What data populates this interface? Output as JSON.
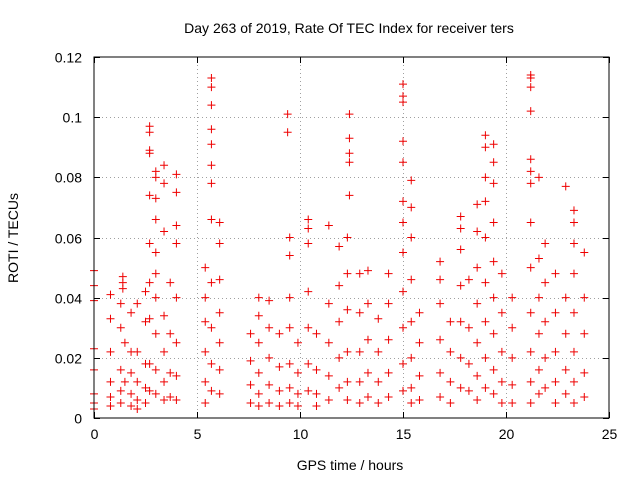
{
  "chart_data": {
    "type": "scatter",
    "title": "Day 263 of 2019, Rate Of TEC Index for receiver ters",
    "xlabel": "GPS time / hours",
    "ylabel": "ROTI / TECUs",
    "xlim": [
      0,
      25
    ],
    "ylim": [
      0,
      0.12
    ],
    "xticks": [
      0,
      5,
      10,
      15,
      20,
      25
    ],
    "xtick_labels": [
      "0",
      "5",
      "10",
      "15",
      "20",
      "25"
    ],
    "yticks": [
      0,
      0.02,
      0.04,
      0.06,
      0.08,
      0.1,
      0.12
    ],
    "ytick_labels": [
      "0",
      "0.02",
      "0.04",
      "0.06",
      "0.08",
      "0.1",
      "0.12"
    ],
    "grid": true,
    "marker": "plus",
    "marker_color": "#ee0000",
    "series": [
      {
        "name": "ROTI",
        "points": [
          [
            0.0,
            0.049
          ],
          [
            0.0,
            0.044
          ],
          [
            0.0,
            0.039
          ],
          [
            0.0,
            0.023
          ],
          [
            0.0,
            0.016
          ],
          [
            0.0,
            0.008
          ],
          [
            0.0,
            0.005
          ],
          [
            0.0,
            0.003
          ],
          [
            0.8,
            0.041
          ],
          [
            0.8,
            0.033
          ],
          [
            0.8,
            0.022
          ],
          [
            0.8,
            0.012
          ],
          [
            0.8,
            0.007
          ],
          [
            0.8,
            0.004
          ],
          [
            1.3,
            0.038
          ],
          [
            1.3,
            0.03
          ],
          [
            1.3,
            0.016
          ],
          [
            1.3,
            0.009
          ],
          [
            1.3,
            0.005
          ],
          [
            1.4,
            0.047
          ],
          [
            1.4,
            0.045
          ],
          [
            1.4,
            0.043
          ],
          [
            1.5,
            0.025
          ],
          [
            1.5,
            0.012
          ],
          [
            1.8,
            0.035
          ],
          [
            1.8,
            0.022
          ],
          [
            1.8,
            0.015
          ],
          [
            1.8,
            0.008
          ],
          [
            1.8,
            0.004
          ],
          [
            2.1,
            0.038
          ],
          [
            2.1,
            0.022
          ],
          [
            2.1,
            0.012
          ],
          [
            2.1,
            0.006
          ],
          [
            2.1,
            0.003
          ],
          [
            2.5,
            0.042
          ],
          [
            2.5,
            0.032
          ],
          [
            2.5,
            0.018
          ],
          [
            2.5,
            0.01
          ],
          [
            2.5,
            0.005
          ],
          [
            2.7,
            0.097
          ],
          [
            2.7,
            0.095
          ],
          [
            2.7,
            0.089
          ],
          [
            2.7,
            0.088
          ],
          [
            2.7,
            0.074
          ],
          [
            2.7,
            0.058
          ],
          [
            2.7,
            0.045
          ],
          [
            2.7,
            0.033
          ],
          [
            2.7,
            0.018
          ],
          [
            2.7,
            0.009
          ],
          [
            3.0,
            0.082
          ],
          [
            3.0,
            0.08
          ],
          [
            3.0,
            0.073
          ],
          [
            3.0,
            0.066
          ],
          [
            3.0,
            0.055
          ],
          [
            3.0,
            0.048
          ],
          [
            3.0,
            0.04
          ],
          [
            3.0,
            0.028
          ],
          [
            3.0,
            0.016
          ],
          [
            3.0,
            0.008
          ],
          [
            3.4,
            0.084
          ],
          [
            3.4,
            0.078
          ],
          [
            3.4,
            0.062
          ],
          [
            3.4,
            0.034
          ],
          [
            3.4,
            0.022
          ],
          [
            3.4,
            0.012
          ],
          [
            3.4,
            0.006
          ],
          [
            3.7,
            0.045
          ],
          [
            3.7,
            0.028
          ],
          [
            3.7,
            0.015
          ],
          [
            3.7,
            0.007
          ],
          [
            4.0,
            0.081
          ],
          [
            4.0,
            0.075
          ],
          [
            4.0,
            0.064
          ],
          [
            4.0,
            0.058
          ],
          [
            4.0,
            0.04
          ],
          [
            4.0,
            0.025
          ],
          [
            4.0,
            0.014
          ],
          [
            4.0,
            0.006
          ],
          [
            5.4,
            0.05
          ],
          [
            5.4,
            0.04
          ],
          [
            5.4,
            0.032
          ],
          [
            5.4,
            0.022
          ],
          [
            5.4,
            0.012
          ],
          [
            5.4,
            0.005
          ],
          [
            5.7,
            0.113
          ],
          [
            5.7,
            0.11
          ],
          [
            5.7,
            0.104
          ],
          [
            5.7,
            0.096
          ],
          [
            5.7,
            0.091
          ],
          [
            5.7,
            0.084
          ],
          [
            5.7,
            0.078
          ],
          [
            5.7,
            0.066
          ],
          [
            5.7,
            0.045
          ],
          [
            5.7,
            0.03
          ],
          [
            5.7,
            0.018
          ],
          [
            5.7,
            0.009
          ],
          [
            6.1,
            0.065
          ],
          [
            6.1,
            0.058
          ],
          [
            6.1,
            0.046
          ],
          [
            6.1,
            0.035
          ],
          [
            6.1,
            0.025
          ],
          [
            6.1,
            0.016
          ],
          [
            6.1,
            0.008
          ],
          [
            7.6,
            0.028
          ],
          [
            7.6,
            0.019
          ],
          [
            7.6,
            0.011
          ],
          [
            7.6,
            0.005
          ],
          [
            8.0,
            0.04
          ],
          [
            8.0,
            0.034
          ],
          [
            8.0,
            0.025
          ],
          [
            8.0,
            0.015
          ],
          [
            8.0,
            0.008
          ],
          [
            8.0,
            0.004
          ],
          [
            8.5,
            0.039
          ],
          [
            8.5,
            0.03
          ],
          [
            8.5,
            0.02
          ],
          [
            8.5,
            0.011
          ],
          [
            8.5,
            0.005
          ],
          [
            9.0,
            0.028
          ],
          [
            9.0,
            0.017
          ],
          [
            9.0,
            0.009
          ],
          [
            9.0,
            0.004
          ],
          [
            9.4,
            0.101
          ],
          [
            9.4,
            0.095
          ],
          [
            9.5,
            0.06
          ],
          [
            9.5,
            0.054
          ],
          [
            9.5,
            0.04
          ],
          [
            9.5,
            0.03
          ],
          [
            9.5,
            0.018
          ],
          [
            9.5,
            0.01
          ],
          [
            9.5,
            0.005
          ],
          [
            9.9,
            0.025
          ],
          [
            9.9,
            0.015
          ],
          [
            9.9,
            0.008
          ],
          [
            9.9,
            0.004
          ],
          [
            10.4,
            0.066
          ],
          [
            10.4,
            0.063
          ],
          [
            10.4,
            0.058
          ],
          [
            10.4,
            0.042
          ],
          [
            10.4,
            0.03
          ],
          [
            10.4,
            0.018
          ],
          [
            10.4,
            0.009
          ],
          [
            10.8,
            0.028
          ],
          [
            10.8,
            0.016
          ],
          [
            10.8,
            0.008
          ],
          [
            10.8,
            0.004
          ],
          [
            11.4,
            0.064
          ],
          [
            11.4,
            0.038
          ],
          [
            11.4,
            0.025
          ],
          [
            11.4,
            0.014
          ],
          [
            11.4,
            0.006
          ],
          [
            11.9,
            0.057
          ],
          [
            11.9,
            0.044
          ],
          [
            11.9,
            0.032
          ],
          [
            11.9,
            0.02
          ],
          [
            11.9,
            0.01
          ],
          [
            12.4,
            0.101
          ],
          [
            12.4,
            0.093
          ],
          [
            12.4,
            0.088
          ],
          [
            12.4,
            0.085
          ],
          [
            12.4,
            0.074
          ],
          [
            12.3,
            0.06
          ],
          [
            12.3,
            0.048
          ],
          [
            12.3,
            0.036
          ],
          [
            12.3,
            0.022
          ],
          [
            12.3,
            0.012
          ],
          [
            12.3,
            0.006
          ],
          [
            12.9,
            0.048
          ],
          [
            12.9,
            0.035
          ],
          [
            12.9,
            0.022
          ],
          [
            12.9,
            0.012
          ],
          [
            12.9,
            0.005
          ],
          [
            13.3,
            0.049
          ],
          [
            13.3,
            0.038
          ],
          [
            13.3,
            0.026
          ],
          [
            13.3,
            0.015
          ],
          [
            13.3,
            0.007
          ],
          [
            13.8,
            0.033
          ],
          [
            13.8,
            0.022
          ],
          [
            13.8,
            0.012
          ],
          [
            13.8,
            0.005
          ],
          [
            14.3,
            0.048
          ],
          [
            14.3,
            0.038
          ],
          [
            14.3,
            0.026
          ],
          [
            14.3,
            0.015
          ],
          [
            14.3,
            0.007
          ],
          [
            15.0,
            0.111
          ],
          [
            15.0,
            0.107
          ],
          [
            15.0,
            0.105
          ],
          [
            15.0,
            0.092
          ],
          [
            15.0,
            0.085
          ],
          [
            15.0,
            0.072
          ],
          [
            15.0,
            0.065
          ],
          [
            15.0,
            0.055
          ],
          [
            15.0,
            0.042
          ],
          [
            15.0,
            0.03
          ],
          [
            15.0,
            0.018
          ],
          [
            15.0,
            0.009
          ],
          [
            15.4,
            0.079
          ],
          [
            15.4,
            0.07
          ],
          [
            15.4,
            0.06
          ],
          [
            15.4,
            0.046
          ],
          [
            15.4,
            0.032
          ],
          [
            15.4,
            0.02
          ],
          [
            15.4,
            0.01
          ],
          [
            15.4,
            0.005
          ],
          [
            15.8,
            0.035
          ],
          [
            15.8,
            0.025
          ],
          [
            15.8,
            0.014
          ],
          [
            15.8,
            0.006
          ],
          [
            16.8,
            0.052
          ],
          [
            16.8,
            0.046
          ],
          [
            16.8,
            0.038
          ],
          [
            16.8,
            0.026
          ],
          [
            16.8,
            0.015
          ],
          [
            16.8,
            0.007
          ],
          [
            17.3,
            0.032
          ],
          [
            17.3,
            0.022
          ],
          [
            17.3,
            0.012
          ],
          [
            17.3,
            0.005
          ],
          [
            17.8,
            0.067
          ],
          [
            17.8,
            0.063
          ],
          [
            17.8,
            0.056
          ],
          [
            17.8,
            0.044
          ],
          [
            17.8,
            0.032
          ],
          [
            17.8,
            0.02
          ],
          [
            17.8,
            0.01
          ],
          [
            18.2,
            0.046
          ],
          [
            18.2,
            0.03
          ],
          [
            18.2,
            0.018
          ],
          [
            18.2,
            0.009
          ],
          [
            18.6,
            0.071
          ],
          [
            18.6,
            0.062
          ],
          [
            18.6,
            0.05
          ],
          [
            18.6,
            0.038
          ],
          [
            18.6,
            0.025
          ],
          [
            18.6,
            0.014
          ],
          [
            18.6,
            0.006
          ],
          [
            19.0,
            0.094
          ],
          [
            19.0,
            0.09
          ],
          [
            19.0,
            0.08
          ],
          [
            19.0,
            0.072
          ],
          [
            19.0,
            0.06
          ],
          [
            19.0,
            0.045
          ],
          [
            19.0,
            0.032
          ],
          [
            19.0,
            0.02
          ],
          [
            19.0,
            0.01
          ],
          [
            19.4,
            0.091
          ],
          [
            19.4,
            0.085
          ],
          [
            19.4,
            0.078
          ],
          [
            19.4,
            0.065
          ],
          [
            19.4,
            0.052
          ],
          [
            19.4,
            0.04
          ],
          [
            19.4,
            0.028
          ],
          [
            19.4,
            0.016
          ],
          [
            19.4,
            0.008
          ],
          [
            19.8,
            0.048
          ],
          [
            19.8,
            0.035
          ],
          [
            19.8,
            0.022
          ],
          [
            19.8,
            0.012
          ],
          [
            19.8,
            0.005
          ],
          [
            20.3,
            0.04
          ],
          [
            20.3,
            0.03
          ],
          [
            20.3,
            0.02
          ],
          [
            20.3,
            0.011
          ],
          [
            20.3,
            0.005
          ],
          [
            21.2,
            0.114
          ],
          [
            21.2,
            0.113
          ],
          [
            21.2,
            0.11
          ],
          [
            21.2,
            0.102
          ],
          [
            21.2,
            0.086
          ],
          [
            21.2,
            0.082
          ],
          [
            21.2,
            0.078
          ],
          [
            21.2,
            0.065
          ],
          [
            21.2,
            0.05
          ],
          [
            21.2,
            0.035
          ],
          [
            21.2,
            0.022
          ],
          [
            21.2,
            0.012
          ],
          [
            21.2,
            0.005
          ],
          [
            21.6,
            0.08
          ],
          [
            21.6,
            0.053
          ],
          [
            21.6,
            0.04
          ],
          [
            21.6,
            0.028
          ],
          [
            21.6,
            0.016
          ],
          [
            21.6,
            0.008
          ],
          [
            21.9,
            0.058
          ],
          [
            21.9,
            0.045
          ],
          [
            21.9,
            0.032
          ],
          [
            21.9,
            0.02
          ],
          [
            21.9,
            0.01
          ],
          [
            22.4,
            0.048
          ],
          [
            22.4,
            0.035
          ],
          [
            22.4,
            0.022
          ],
          [
            22.4,
            0.012
          ],
          [
            22.4,
            0.005
          ],
          [
            22.9,
            0.077
          ],
          [
            22.9,
            0.04
          ],
          [
            22.9,
            0.028
          ],
          [
            22.9,
            0.016
          ],
          [
            22.9,
            0.008
          ],
          [
            23.3,
            0.069
          ],
          [
            23.3,
            0.065
          ],
          [
            23.3,
            0.058
          ],
          [
            23.3,
            0.048
          ],
          [
            23.3,
            0.035
          ],
          [
            23.3,
            0.022
          ],
          [
            23.3,
            0.012
          ],
          [
            23.3,
            0.005
          ],
          [
            23.8,
            0.055
          ],
          [
            23.8,
            0.04
          ],
          [
            23.8,
            0.028
          ],
          [
            23.8,
            0.015
          ],
          [
            23.8,
            0.007
          ]
        ]
      }
    ]
  }
}
